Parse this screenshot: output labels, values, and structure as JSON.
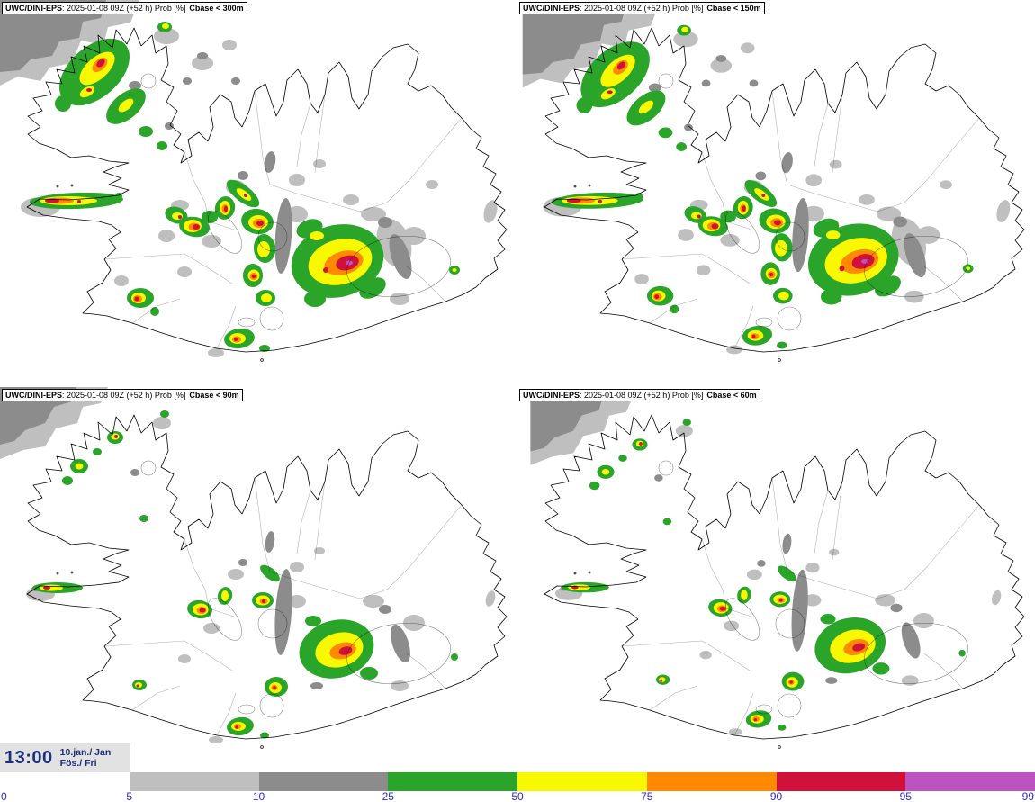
{
  "panels": [
    {
      "model": "UWC/DINI-EPS",
      "meta": ": 2025-01-08 09Z (+52 h) Prob [%]",
      "threshold": "Cbase < 300m"
    },
    {
      "model": "UWC/DINI-EPS",
      "meta": ": 2025-01-08 09Z (+52 h) Prob [%]",
      "threshold": "Cbase < 150m"
    },
    {
      "model": "UWC/DINI-EPS",
      "meta": ": 2025-01-08 09Z (+52 h) Prob [%]",
      "threshold": "Cbase < 90m"
    },
    {
      "model": "UWC/DINI-EPS",
      "meta": ": 2025-01-08 09Z (+52 h) Prob [%]",
      "threshold": "Cbase < 60m"
    }
  ],
  "footer": {
    "time": "13:00",
    "date": "10.jan./ Jan",
    "day": "Fös./ Fri",
    "text_color": "#1d2e7c",
    "box_color": "#e2e2e2"
  },
  "colorbar": {
    "title": "Prob [%]",
    "tick_color": "#2a2ac8",
    "ticks": [
      "0",
      "5",
      "10",
      "25",
      "50",
      "75",
      "90",
      "95",
      "99"
    ],
    "segments": [
      {
        "range": "0-5",
        "color": "#ffffff"
      },
      {
        "range": "5-10",
        "color": "#bfbfbf"
      },
      {
        "range": "10-25",
        "color": "#8c8c8c"
      },
      {
        "range": "25-50",
        "color": "#2aa52a"
      },
      {
        "range": "50-75",
        "color": "#f8f800"
      },
      {
        "range": "75-90",
        "color": "#ff8a00"
      },
      {
        "range": "90-95",
        "color": "#d0113b"
      },
      {
        "range": "95-99",
        "color": "#bc53c0"
      }
    ]
  },
  "palette": {
    "gray_light": "#bfbfbf",
    "gray_dark": "#8c8c8c",
    "green": "#2aa52a",
    "yellow": "#f8f800",
    "orange": "#ff8a00",
    "red": "#d0113b",
    "magenta": "#bc53c0"
  }
}
